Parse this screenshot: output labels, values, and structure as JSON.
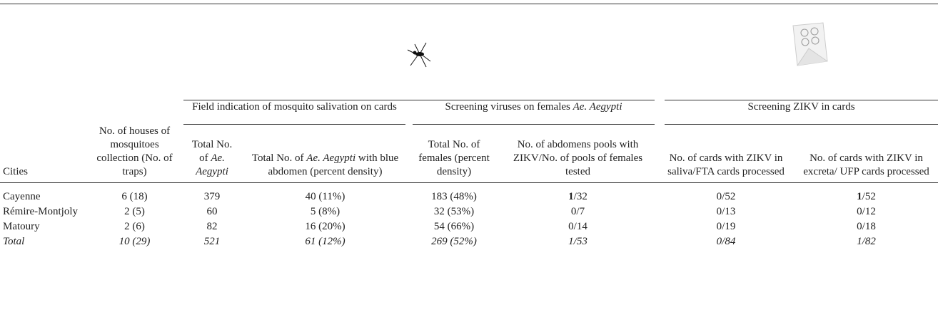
{
  "table": {
    "groups": [
      "Field indication of mosquito salivation on cards",
      [
        "Screening viruses on females ",
        {
          "text": "Ae. Aegypti",
          "italic": true
        }
      ],
      "Screening ZIKV in cards"
    ],
    "columns": [
      "Cities",
      "No. of houses of mosquitoes collection (No. of traps)",
      [
        "Total No. of ",
        {
          "text": "Ae. Aegypti",
          "italic": true
        }
      ],
      [
        "Total No. of ",
        {
          "text": "Ae. Aegypti",
          "italic": true
        },
        " with blue abdomen (percent density)"
      ],
      "Total No. of females (percent density)",
      "No. of abdomens pools with ZIKV/No. of pools of females tested",
      "No. of cards with ZIKV in saliva/FTA cards processed",
      "No. of cards with ZIKV in excreta/ UFP cards processed"
    ],
    "rows": [
      {
        "cells": [
          "Cayenne",
          "6 (18)",
          "379",
          "40 (11%)",
          "183 (48%)",
          [
            {
              "text": "1",
              "bold": true
            },
            "/32"
          ],
          "0/52",
          [
            {
              "text": "1",
              "bold": true
            },
            "/52"
          ]
        ]
      },
      {
        "cells": [
          "Rémire-Montjoly",
          "2 (5)",
          "60",
          "5 (8%)",
          "32 (53%)",
          "0/7",
          "0/13",
          "0/12"
        ]
      },
      {
        "cells": [
          "Matoury",
          "2 (6)",
          "82",
          "16 (20%)",
          "54 (66%)",
          "0/14",
          "0/19",
          "0/18"
        ]
      },
      {
        "cells": [
          "Total",
          "10 (29)",
          "521",
          "61 (12%)",
          "269 (52%)",
          "1/53",
          "0/84",
          "1/82"
        ],
        "italic": true
      }
    ]
  }
}
